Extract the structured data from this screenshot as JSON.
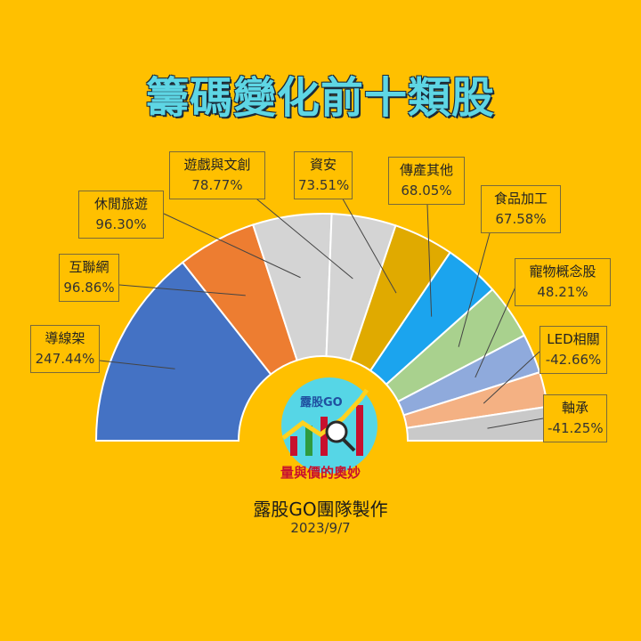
{
  "title": "籌碼變化前十類股",
  "logo": {
    "brand": "露股GO",
    "slogan": "量與價的奧妙"
  },
  "footer": {
    "team": "露股GO團隊製作",
    "date": "2023/9/7"
  },
  "chart_data": {
    "type": "pie",
    "style": "half-doughnut",
    "title": "籌碼變化前十類股",
    "categories": [
      "導線架",
      "互聯網",
      "休閒旅遊",
      "遊戲與文創",
      "資安",
      "傳產其他",
      "食品加工",
      "寵物概念股",
      "LED相關",
      "軸承"
    ],
    "values": [
      247.44,
      96.86,
      96.3,
      78.77,
      73.51,
      68.05,
      67.58,
      48.21,
      -42.66,
      -41.25
    ],
    "labels": [
      "247.44%",
      "96.86%",
      "96.30%",
      "78.77%",
      "73.51%",
      "68.05%",
      "67.58%",
      "48.21%",
      "-42.66%",
      "-41.25%"
    ],
    "colors": [
      "#4472C4",
      "#ED7D31",
      "#D0D0D0",
      "#D0D0D0",
      "#DAA300",
      "#1BA4EE",
      "#A9D18E",
      "#8FAADC",
      "#F4B183",
      "#C9C9C9",
      "#FFD48A"
    ]
  }
}
